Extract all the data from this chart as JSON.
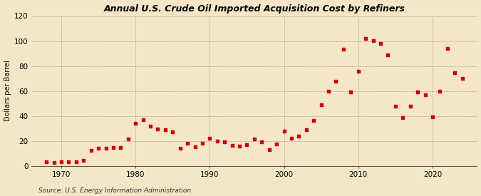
{
  "title": "Annual U.S. Crude Oil Imported Acquisition Cost by Refiners",
  "ylabel": "Dollars per Barrel",
  "source": "Source: U.S. Energy Information Administration",
  "background_color": "#f5e6c8",
  "plot_background_color": "#f5e6c8",
  "marker_color": "#cc0000",
  "years": [
    1968,
    1969,
    1970,
    1971,
    1972,
    1973,
    1974,
    1975,
    1976,
    1977,
    1978,
    1979,
    1980,
    1981,
    1982,
    1983,
    1984,
    1985,
    1986,
    1987,
    1988,
    1989,
    1990,
    1991,
    1992,
    1993,
    1994,
    1995,
    1996,
    1997,
    1998,
    1999,
    2000,
    2001,
    2002,
    2003,
    2004,
    2005,
    2006,
    2007,
    2008,
    2009,
    2010,
    2011,
    2012,
    2013,
    2014,
    2015,
    2016,
    2017,
    2018,
    2019,
    2020,
    2021,
    2022,
    2023,
    2024
  ],
  "values": [
    2.9,
    2.8,
    2.9,
    3.2,
    3.4,
    4.1,
    12.5,
    13.9,
    14.0,
    14.7,
    14.8,
    21.5,
    33.9,
    37.1,
    31.7,
    29.3,
    28.8,
    27.0,
    14.0,
    18.1,
    15.0,
    18.1,
    22.2,
    19.6,
    19.0,
    16.5,
    16.0,
    16.8,
    21.7,
    19.3,
    13.0,
    17.5,
    27.7,
    21.8,
    23.8,
    28.8,
    36.1,
    48.8,
    59.8,
    67.8,
    93.5,
    59.4,
    75.8,
    102.0,
    100.5,
    98.0,
    89.0,
    47.8,
    38.8,
    47.5,
    59.0,
    57.0,
    39.0,
    59.5,
    94.0,
    74.5,
    70.0
  ],
  "xlim": [
    1966,
    2026
  ],
  "ylim": [
    0,
    120
  ],
  "xticks": [
    1970,
    1980,
    1990,
    2000,
    2010,
    2020
  ],
  "yticks": [
    0,
    20,
    40,
    60,
    80,
    100,
    120
  ]
}
